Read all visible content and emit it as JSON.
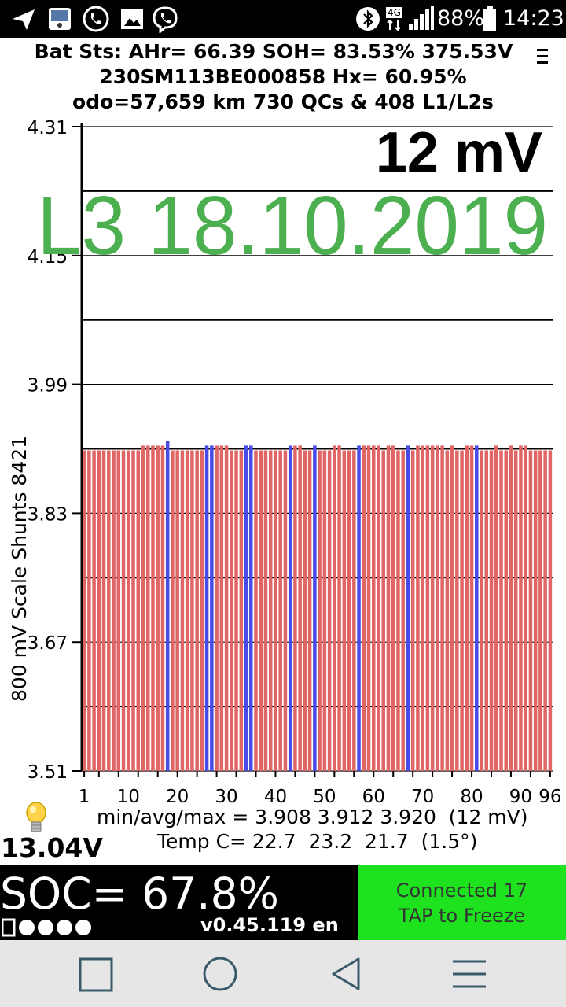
{
  "status_bar": {
    "battery_pct": "88%",
    "time": "14:23",
    "network": "4G",
    "icons": [
      "send-icon",
      "gallery-app-icon",
      "call-icon",
      "image-icon",
      "viber-icon",
      "bluetooth-icon",
      "network-4g-icon",
      "signal-icon",
      "battery-icon"
    ]
  },
  "header": {
    "line1": "Bat Sts: AHr= 66.39 SOH= 83.53% 375.53V",
    "line2": "230SM113BE000858   Hx= 60.95%",
    "line3": "odo=57,659 km 730 QCs & 408 L1/L2s"
  },
  "chart_data": {
    "type": "bar",
    "ylabel": "800 mV Scale   Shunts 8421",
    "ylim": [
      3.51,
      4.31
    ],
    "yticks": [
      "4.31",
      "4.15",
      "3.99",
      "3.83",
      "3.67",
      "3.51"
    ],
    "xlim": [
      1,
      96
    ],
    "xticks": [
      "1",
      "10",
      "20",
      "30",
      "40",
      "50",
      "60",
      "70",
      "80",
      "90",
      "96"
    ],
    "spread_label": "12 mV",
    "overlay_text": "L3 18.10.2019",
    "colors": {
      "cell": "#e06666",
      "shunt": "#4a4ae6",
      "overlay": "#4caf50"
    },
    "cells": 96,
    "min": 3.908,
    "max": 3.92,
    "shunted_cells": [
      18,
      26,
      27,
      34,
      35,
      43,
      48,
      57,
      67,
      81
    ],
    "raised_cells": [
      13,
      14,
      15,
      16,
      17,
      18,
      28,
      29,
      30,
      44,
      45,
      52,
      53,
      58,
      59,
      60,
      61,
      63,
      64,
      67,
      69,
      70,
      71,
      72,
      73,
      74,
      76,
      79,
      80,
      81,
      85,
      88,
      90,
      91
    ],
    "stats_line": "min/avg/max = 3.908 3.912 3.920  (12 mV)",
    "temp_line": "Temp C= 22.7  23.2  21.7  (1.5°)"
  },
  "aux_voltage": "13.04V",
  "soc": "SOC= 67.8%",
  "version": "v0.45.119 en",
  "connection_status": "Connected 17",
  "tap_hint": "TAP to Freeze",
  "nav": [
    "recent-apps-button",
    "home-button",
    "back-button",
    "menu-button"
  ]
}
